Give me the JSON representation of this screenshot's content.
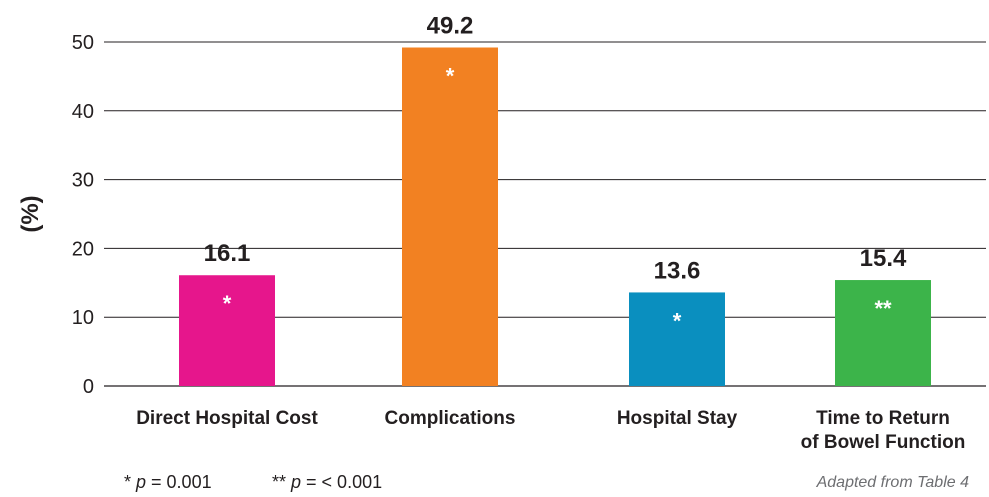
{
  "chart_data": {
    "type": "bar",
    "categories": [
      [
        "Direct Hospital Cost"
      ],
      [
        "Complications"
      ],
      [
        "Hospital Stay"
      ],
      [
        "Time to Return",
        "of Bowel Function"
      ]
    ],
    "values": [
      16.1,
      49.2,
      13.6,
      15.4
    ],
    "value_labels": [
      "16.1",
      "49.2",
      "13.6",
      "15.4"
    ],
    "colors": [
      "#e6168c",
      "#f28122",
      "#0a8fbf",
      "#3cb44a"
    ],
    "significance": [
      "*",
      "*",
      "*",
      "**"
    ],
    "ylabel": "(%)",
    "ylim": [
      0,
      50
    ],
    "yticks": [
      0,
      10,
      20,
      30,
      40,
      50
    ],
    "grid": true
  },
  "footnotes": {
    "p1": {
      "mark": "* ",
      "var": "p",
      "rest": " = 0.001"
    },
    "p2": {
      "mark": "** ",
      "var": "p",
      "rest": " = < 0.001"
    }
  },
  "source": "Adapted from Table 4"
}
